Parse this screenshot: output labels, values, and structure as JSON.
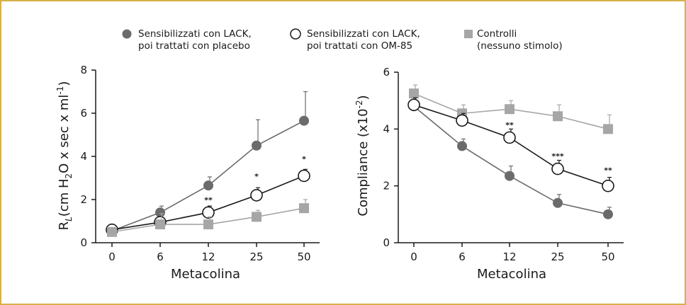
{
  "legend": {
    "items": [
      {
        "line1": "Sensibilizzati con LACK,",
        "line2": "poi trattati con placebo",
        "marker": "filled-circle",
        "color": "#6b6b6b"
      },
      {
        "line1": "Sensibilizzati con LACK,",
        "line2": "poi trattati con OM-85",
        "marker": "open-circle",
        "color": "#1a1a1a"
      },
      {
        "line1": "Controlli",
        "line2": "(nessuno stimolo)",
        "marker": "square",
        "color": "#a6a6a6"
      }
    ]
  },
  "colors": {
    "border": "#d7b04a",
    "placebo": "#6b6b6b",
    "om85": "#1a1a1a",
    "controls": "#a6a6a6"
  },
  "chart_data": [
    {
      "type": "line",
      "title": "",
      "xlabel": "Metacolina",
      "ylabel_parts": {
        "R": "R",
        "sub_L": "L",
        "pre": "(cm H",
        "sub_2": "2",
        "mid": "O x sec x ml",
        "sup": "-1",
        "post": ")"
      },
      "categories": [
        "0",
        "6",
        "12",
        "25",
        "50"
      ],
      "ylim": [
        0,
        8
      ],
      "yticks": [
        0,
        2,
        4,
        6,
        8
      ],
      "series": [
        {
          "key": "placebo",
          "values": [
            0.55,
            1.4,
            2.65,
            4.5,
            5.65
          ],
          "err": [
            0.1,
            0.3,
            0.4,
            1.2,
            1.35
          ]
        },
        {
          "key": "om85",
          "values": [
            0.6,
            0.95,
            1.4,
            2.2,
            3.1
          ],
          "err": [
            0.1,
            0.2,
            0.3,
            0.35,
            0.3
          ]
        },
        {
          "key": "controls",
          "values": [
            0.5,
            0.85,
            0.85,
            1.2,
            1.6
          ],
          "err": [
            0.1,
            0.5,
            0.35,
            0.3,
            0.4
          ]
        }
      ],
      "annotations": [
        {
          "x": "12",
          "y": 1.85,
          "text": "**"
        },
        {
          "x": "25",
          "y": 2.95,
          "text": "*"
        },
        {
          "x": "50",
          "y": 3.75,
          "text": "*"
        }
      ]
    },
    {
      "type": "line",
      "title": "",
      "xlabel": "Metacolina",
      "ylabel_parts": {
        "pre": "Compliance (x10",
        "sup": "-2",
        "post": ")"
      },
      "categories": [
        "0",
        "6",
        "12",
        "25",
        "50"
      ],
      "ylim": [
        0,
        6
      ],
      "yticks": [
        0,
        2,
        4,
        6
      ],
      "series": [
        {
          "key": "placebo",
          "values": [
            4.8,
            3.4,
            2.35,
            1.4,
            1.0
          ],
          "err": [
            0.3,
            0.25,
            0.35,
            0.3,
            0.25
          ]
        },
        {
          "key": "controls",
          "values": [
            5.25,
            4.55,
            4.7,
            4.45,
            4.0
          ],
          "err": [
            0.3,
            0.3,
            0.3,
            0.4,
            0.5
          ]
        },
        {
          "key": "om85",
          "values": [
            4.85,
            4.3,
            3.7,
            2.6,
            2.0
          ],
          "err": [
            0.25,
            0.25,
            0.3,
            0.3,
            0.3
          ]
        }
      ],
      "annotations": [
        {
          "x": "12",
          "y": 4.05,
          "text": "**"
        },
        {
          "x": "25",
          "y": 2.95,
          "text": "***"
        },
        {
          "x": "50",
          "y": 2.45,
          "text": "**"
        }
      ]
    }
  ]
}
